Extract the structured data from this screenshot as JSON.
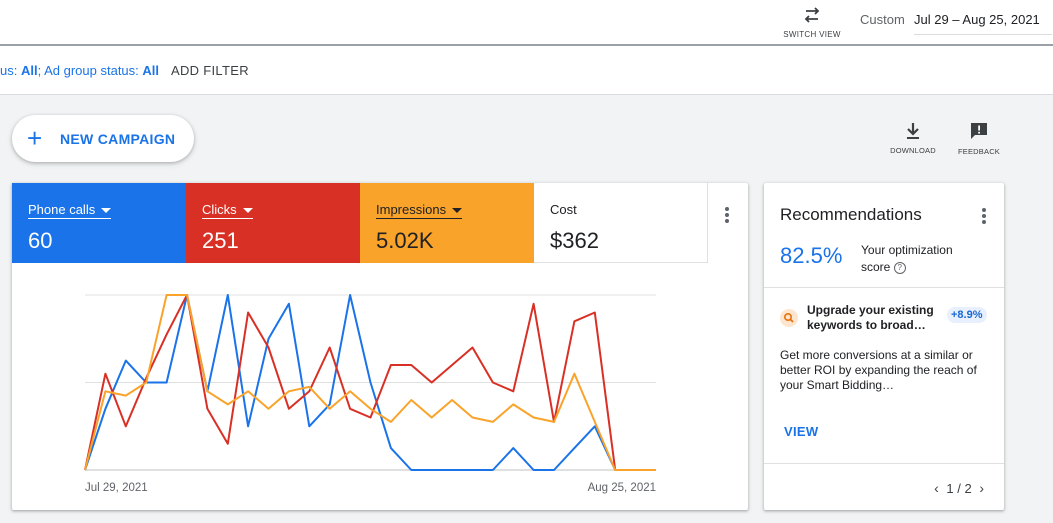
{
  "topbar": {
    "switch_view_label": "SWITCH VIEW",
    "custom_label": "Custom",
    "date_range": "Jul 29 – Aug 25, 2021"
  },
  "filter_bar": {
    "prefix": "us: ",
    "campaign_status_value": "All",
    "separator": "; Ad group status: ",
    "ad_group_status_value": "All",
    "add_filter_label": "ADD FILTER"
  },
  "new_campaign": {
    "icon": "plus-icon",
    "label": "NEW CAMPAIGN"
  },
  "toolbar": {
    "download_label": "DOWNLOAD",
    "feedback_label": "FEEDBACK"
  },
  "metrics": [
    {
      "name": "Phone calls",
      "value": "60",
      "color": "#1a73e8",
      "has_dropdown": true
    },
    {
      "name": "Clicks",
      "value": "251",
      "color": "#d93025",
      "has_dropdown": true
    },
    {
      "name": "Impressions",
      "value": "5.02K",
      "color": "#f9a32b",
      "has_dropdown": true
    },
    {
      "name": "Cost",
      "value": "$362",
      "color": "#ffffff",
      "has_dropdown": false
    }
  ],
  "chart_data": {
    "type": "line",
    "x_start_label": "Jul 29, 2021",
    "x_end_label": "Aug 25, 2021",
    "ylim": [
      0,
      4
    ],
    "grid": true,
    "series": [
      {
        "name": "Phone calls",
        "color": "#1a73e8",
        "values": [
          0,
          1.4,
          2.5,
          2,
          2,
          4,
          1.8,
          4,
          1,
          3,
          3.8,
          1,
          1.5,
          4,
          2,
          0.5,
          0,
          0,
          0,
          0,
          0,
          0.5,
          0,
          0,
          0.5,
          1,
          0,
          0,
          0
        ]
      },
      {
        "name": "Clicks",
        "color": "#d93025",
        "values": [
          0,
          2.2,
          1,
          2.1,
          3.1,
          4,
          1.4,
          0.6,
          3.6,
          2.8,
          1.4,
          1.8,
          2.8,
          1.4,
          1.2,
          2.4,
          2.4,
          2,
          2.4,
          2.8,
          2,
          1.8,
          3.8,
          1.1,
          3.4,
          3.6,
          0,
          0,
          0
        ]
      },
      {
        "name": "Impressions",
        "color": "#f9a32b",
        "values": [
          0,
          1.8,
          1.7,
          2,
          4,
          4,
          1.8,
          1.5,
          1.8,
          1.4,
          1.8,
          1.9,
          1.4,
          1.8,
          1.4,
          1.1,
          1.6,
          1.2,
          1.6,
          1.2,
          1.1,
          1.5,
          1.2,
          1.1,
          2.2,
          1.1,
          0,
          0,
          0
        ]
      }
    ]
  },
  "recommendations": {
    "title": "Recommendations",
    "score": "82.5%",
    "score_label": "Your optimization score",
    "item_heading": "Upgrade your existing keywords to broad…",
    "item_badge": "+8.9%",
    "item_body": "Get more conversions at a similar or better ROI by expanding the reach of your Smart Bidding…",
    "view_label": "VIEW",
    "pager": "1 / 2"
  }
}
